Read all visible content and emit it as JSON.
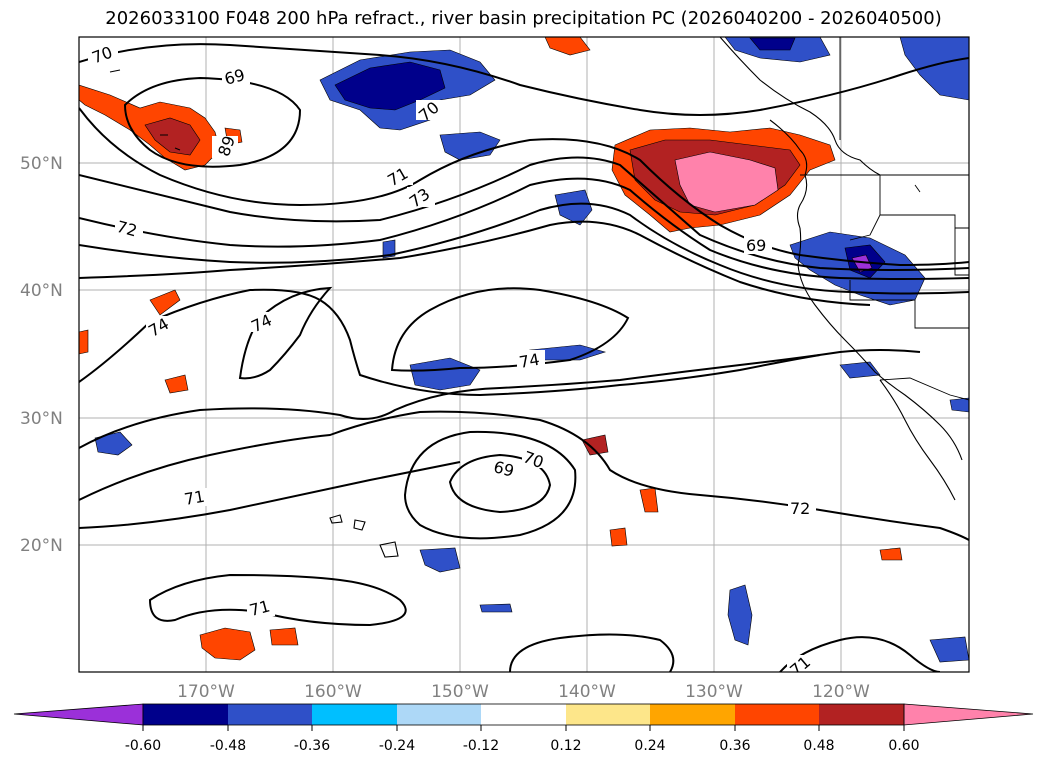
{
  "title": "2026033100 F048 200 hPa refract., river basin precipitation PC (2026040200 - 2026040500)",
  "map": {
    "lat_labels": [
      "50°N",
      "40°N",
      "30°N",
      "20°N"
    ],
    "lon_labels": [
      "170°W",
      "160°W",
      "150°W",
      "140°W",
      "130°W",
      "120°W"
    ],
    "contour_labels": [
      "70",
      "69",
      "89",
      "70",
      "71",
      "73",
      "72",
      "74",
      "74",
      "74",
      "69",
      "69",
      "70",
      "71",
      "72",
      "71",
      "71"
    ]
  },
  "colorbar": {
    "ticks": [
      "-0.60",
      "-0.48",
      "-0.36",
      "-0.24",
      "-0.12",
      "0.12",
      "0.24",
      "0.36",
      "0.48",
      "0.60"
    ],
    "colors": [
      "#9b30d9",
      "#00008b",
      "#2f50c8",
      "#00bfff",
      "#add8f7",
      "#ffffff",
      "#fde68a",
      "#ffa500",
      "#ff4500",
      "#b22222",
      "#ff82ab"
    ]
  }
}
